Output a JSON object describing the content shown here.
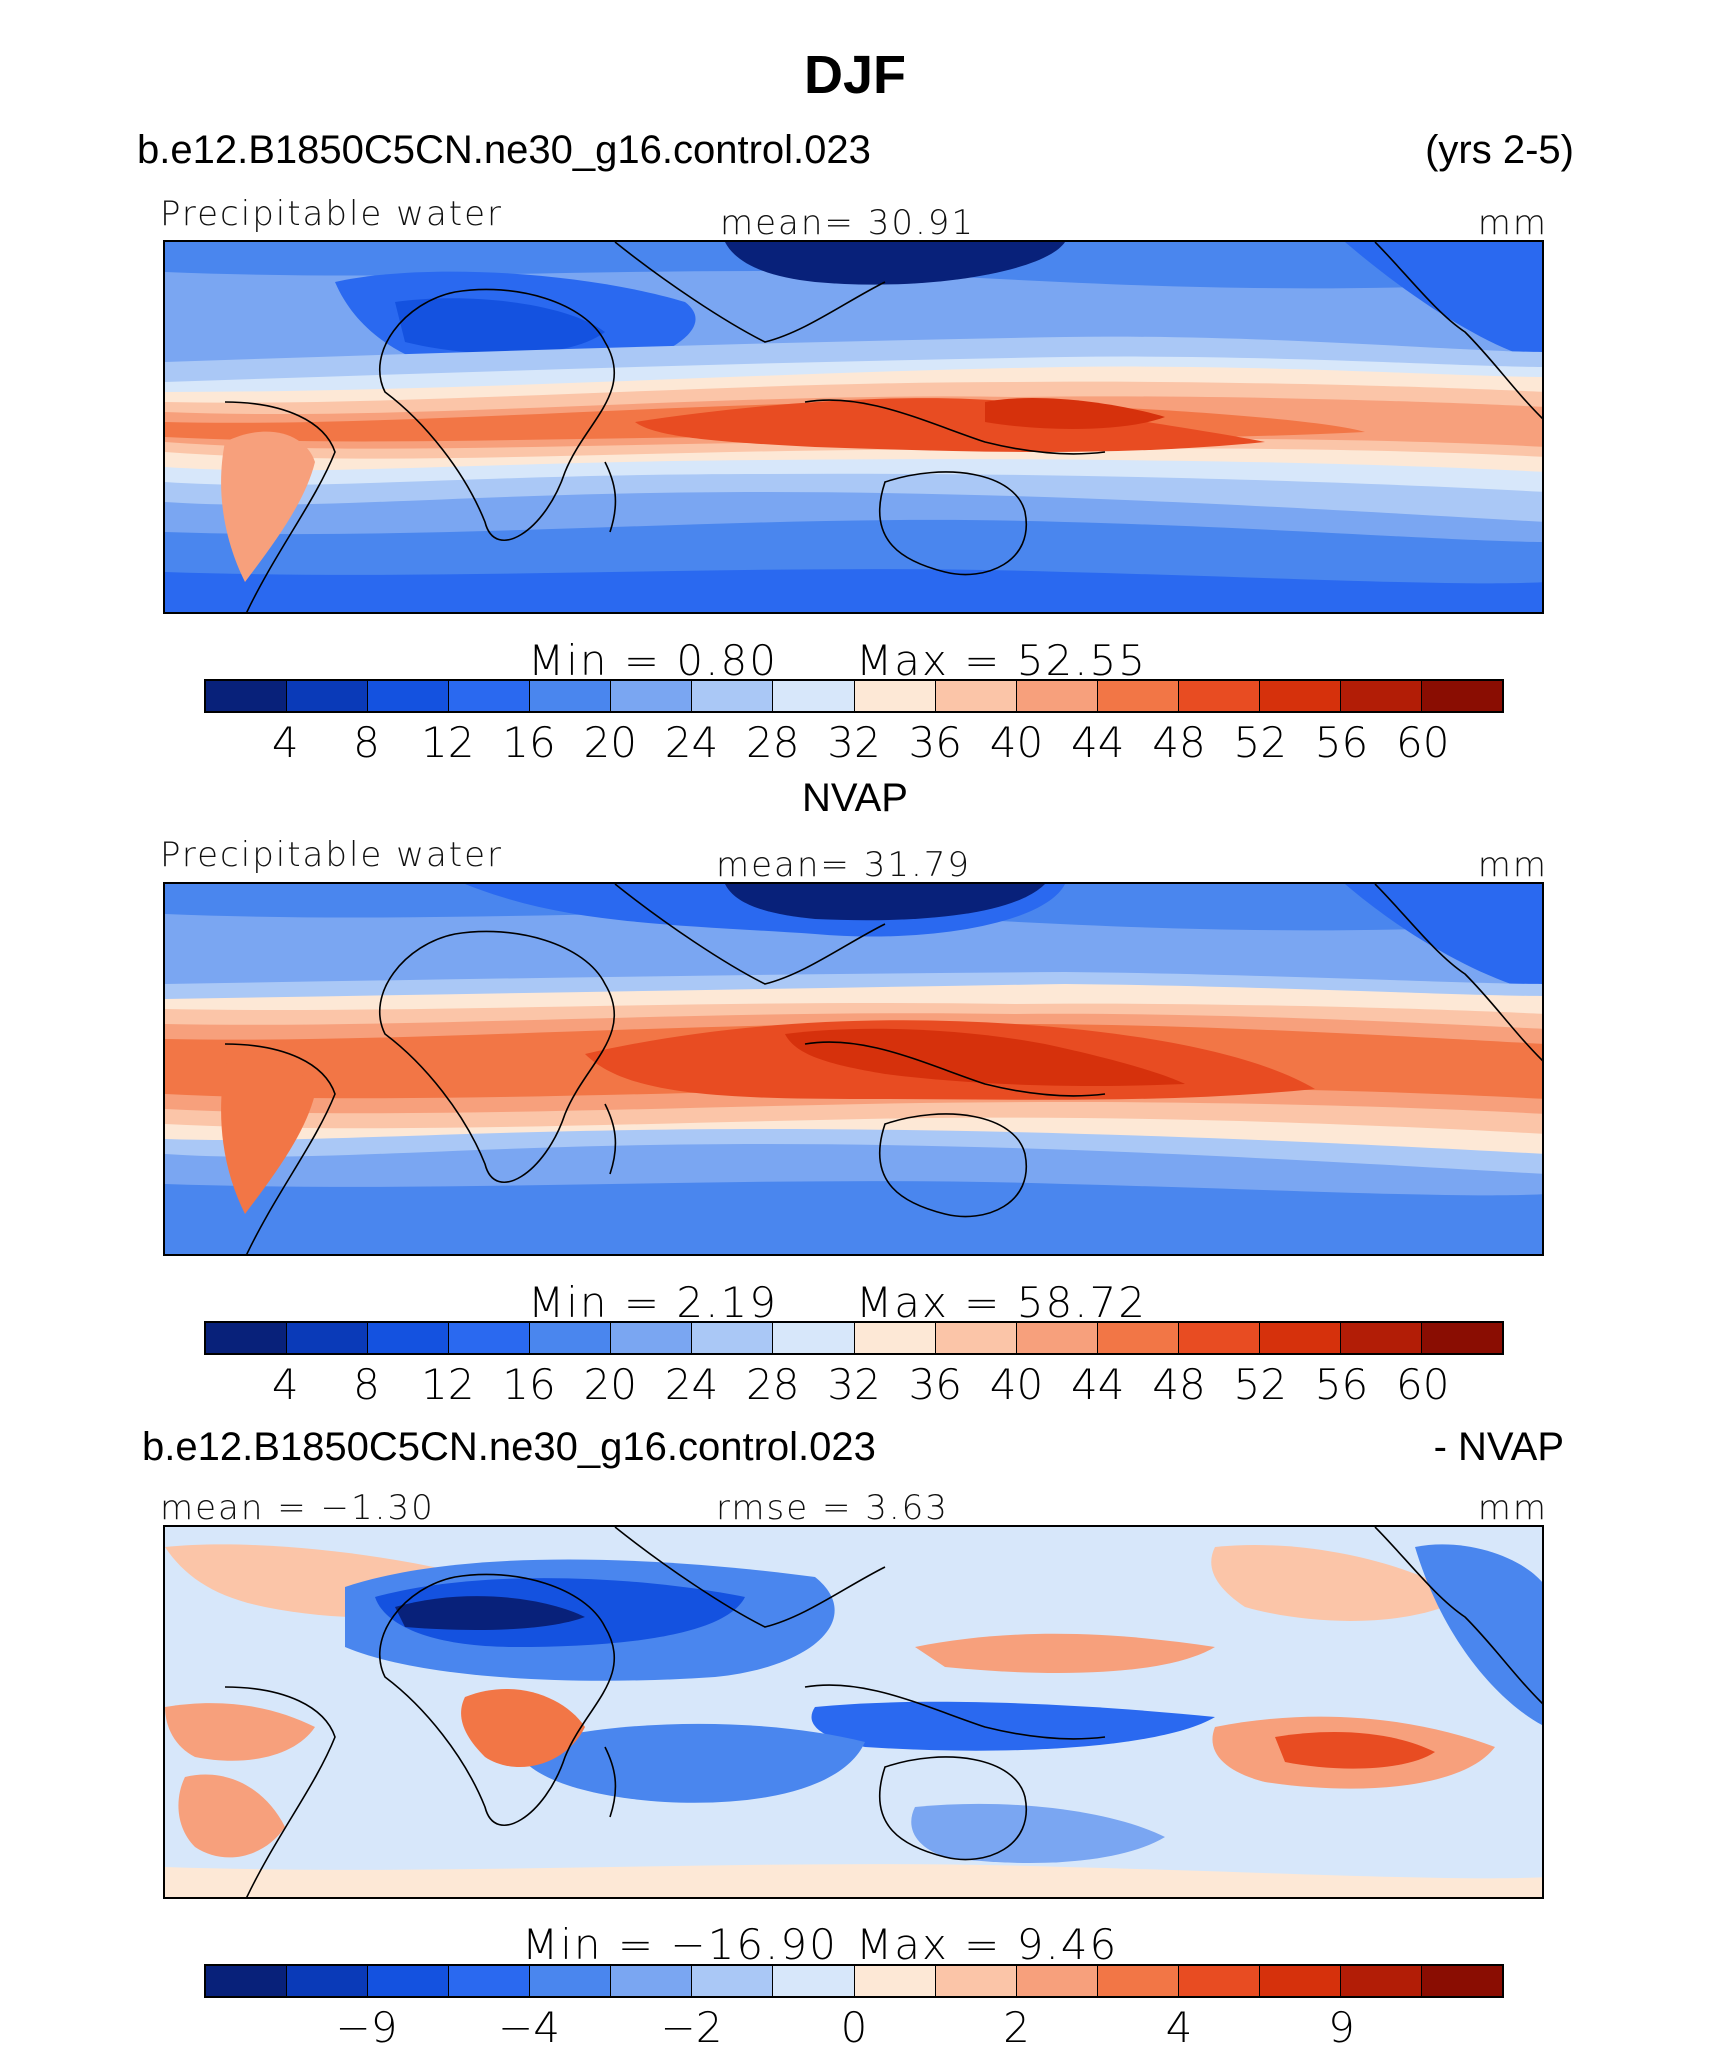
{
  "page_title": "DJF",
  "palette": [
    "#08217a",
    "#0a3ab8",
    "#1452e0",
    "#2a69f0",
    "#4a86ee",
    "#7aa6f2",
    "#aac8f6",
    "#d7e7fa",
    "#fde8d6",
    "#fbc5a8",
    "#f7a07c",
    "#f27646",
    "#e84c22",
    "#d6310c",
    "#b21d06",
    "#8a0d02"
  ],
  "panels": [
    {
      "header_left": "b.e12.B1850C5CN.ne30_g16.control.023",
      "header_right": "(yrs 2-5)",
      "label_left": "Precipitable water",
      "label_center": "mean=   30.91",
      "label_right": "mm",
      "min_text": "Min  =     0.80",
      "max_text": "Max  =    52.55",
      "ticks": [
        "4",
        "8",
        "12",
        "16",
        "20",
        "24",
        "28",
        "32",
        "36",
        "40",
        "44",
        "48",
        "52",
        "56",
        "60"
      ]
    },
    {
      "header_center": "NVAP",
      "label_left": "Precipitable water",
      "label_center": "mean=   31.79",
      "label_right": "mm",
      "min_text": "Min  =     2.19",
      "max_text": "Max  =    58.72",
      "ticks": [
        "4",
        "8",
        "12",
        "16",
        "20",
        "24",
        "28",
        "32",
        "36",
        "40",
        "44",
        "48",
        "52",
        "56",
        "60"
      ]
    },
    {
      "header_left": "b.e12.B1850C5CN.ne30_g16.control.023",
      "header_right": "- NVAP",
      "label_left": "mean  =   −1.30",
      "label_center": "rmse  =     3.63",
      "label_right": "mm",
      "min_text": "Min  = −16.90",
      "max_text": "Max  =     9.46",
      "ticks": [
        "−9",
        "−4",
        "−2",
        "0",
        "2",
        "4",
        "9"
      ]
    }
  ]
}
